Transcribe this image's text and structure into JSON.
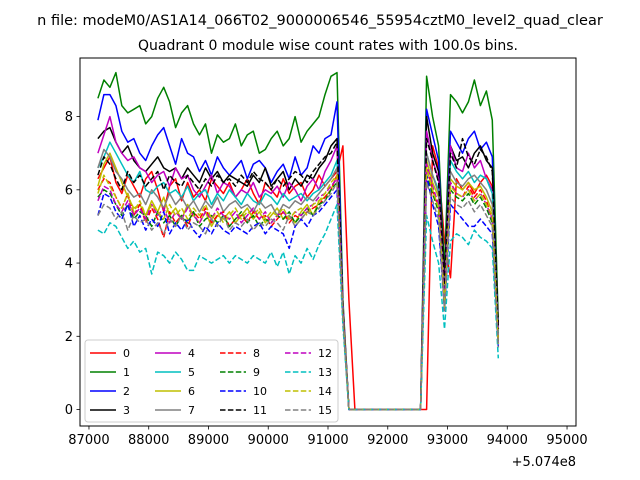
{
  "chart_data": {
    "type": "line",
    "suptitle": "n file: modeM0/AS1A14_066T02_9000006546_55954cztM0_level2_quad_clear",
    "title": "Quadrant 0 module wise count rates with 100.0s bins.",
    "xlabel": "",
    "ylabel": "",
    "x_offset_label": "+5.074e8",
    "xlim": [
      86850,
      95150
    ],
    "ylim": [
      -0.45,
      9.6
    ],
    "xticks": [
      87000,
      88000,
      89000,
      90000,
      91000,
      92000,
      93000,
      94000,
      95000
    ],
    "xtick_labels": [
      "87000",
      "88000",
      "89000",
      "90000",
      "91000",
      "92000",
      "93000",
      "94000",
      "95000"
    ],
    "yticks": [
      0,
      2,
      4,
      6,
      8
    ],
    "ytick_labels": [
      "0",
      "2",
      "4",
      "6",
      "8"
    ],
    "grid": false,
    "legend_placement": "lower-left",
    "legend_columns": 4,
    "x_start": 87150,
    "x_step": 100,
    "series": [
      {
        "name": "0",
        "color": "#ff0000",
        "dash": "solid",
        "values": [
          6.3,
          6.6,
          6.9,
          6.2,
          5.9,
          6.4,
          6.1,
          5.8,
          6.3,
          6.5,
          6.0,
          5.4,
          6.1,
          6.3,
          5.7,
          6.2,
          5.8,
          6.0,
          5.7,
          6.3,
          6.1,
          5.9,
          6.2,
          5.8,
          6.0,
          6.3,
          5.9,
          5.6,
          6.2,
          6.0,
          5.8,
          6.3,
          5.9,
          6.1,
          6.2,
          5.8,
          6.0,
          6.4,
          6.1,
          6.3,
          6.5,
          7.2,
          3.0,
          0.0,
          0.0,
          0.0,
          0.0,
          0.0,
          0.0,
          0.0,
          0.0,
          0.0,
          0.0,
          0.0,
          0.0,
          0.0,
          7.2,
          6.6,
          4.6,
          3.6,
          6.3,
          6.0,
          6.2,
          5.9,
          6.2,
          6.4,
          6.1,
          2.3
        ]
      },
      {
        "name": "1",
        "color": "#008000",
        "dash": "solid",
        "values": [
          8.5,
          9.0,
          8.8,
          9.2,
          8.3,
          8.1,
          8.2,
          8.3,
          7.8,
          8.0,
          8.5,
          8.8,
          8.4,
          7.7,
          8.1,
          8.3,
          7.8,
          7.5,
          7.8,
          7.0,
          7.5,
          7.3,
          7.4,
          7.8,
          7.2,
          7.5,
          7.6,
          7.0,
          7.1,
          7.4,
          7.6,
          7.2,
          7.4,
          8.0,
          7.3,
          7.6,
          7.8,
          8.0,
          8.6,
          9.1,
          9.2,
          3.0,
          0.0,
          0.0,
          0.0,
          0.0,
          0.0,
          0.0,
          0.0,
          0.0,
          0.0,
          0.0,
          0.0,
          0.0,
          0.0,
          9.1,
          8.0,
          7.2,
          3.8,
          8.6,
          8.4,
          8.1,
          8.4,
          9.0,
          8.3,
          8.7,
          7.9,
          2.4
        ]
      },
      {
        "name": "2",
        "color": "#0000ff",
        "dash": "solid",
        "values": [
          7.9,
          8.6,
          8.6,
          8.3,
          7.6,
          7.3,
          7.4,
          7.0,
          6.8,
          7.2,
          7.5,
          7.7,
          7.2,
          6.7,
          7.4,
          7.0,
          6.9,
          6.5,
          6.8,
          6.4,
          6.9,
          6.6,
          6.4,
          6.6,
          6.8,
          6.3,
          6.7,
          6.8,
          6.6,
          6.2,
          6.5,
          6.7,
          6.3,
          6.9,
          6.4,
          6.6,
          7.2,
          7.0,
          7.4,
          7.5,
          8.4,
          2.8,
          0.0,
          0.0,
          0.0,
          0.0,
          0.0,
          0.0,
          0.0,
          0.0,
          0.0,
          0.0,
          0.0,
          0.0,
          0.0,
          8.2,
          7.5,
          6.8,
          3.4,
          7.6,
          7.3,
          7.0,
          7.4,
          7.6,
          7.1,
          7.3,
          6.9,
          2.1
        ]
      },
      {
        "name": "3",
        "color": "#000000",
        "dash": "solid",
        "values": [
          7.4,
          7.6,
          7.7,
          7.3,
          7.0,
          7.2,
          6.8,
          6.6,
          6.5,
          6.7,
          6.9,
          6.6,
          6.5,
          6.6,
          6.3,
          6.6,
          6.4,
          6.2,
          6.6,
          6.3,
          6.5,
          6.2,
          6.4,
          6.3,
          6.2,
          6.1,
          6.4,
          6.2,
          6.6,
          6.1,
          6.3,
          6.5,
          6.0,
          6.3,
          6.1,
          6.4,
          6.3,
          6.6,
          6.8,
          7.2,
          7.4,
          2.8,
          0.0,
          0.0,
          0.0,
          0.0,
          0.0,
          0.0,
          0.0,
          0.0,
          0.0,
          0.0,
          0.0,
          0.0,
          0.0,
          8.0,
          7.0,
          6.5,
          3.6,
          7.2,
          6.8,
          6.9,
          6.6,
          7.0,
          7.2,
          6.8,
          6.6,
          2.2
        ]
      },
      {
        "name": "4",
        "color": "#bf00bf",
        "dash": "solid",
        "values": [
          7.0,
          7.5,
          8.0,
          7.3,
          7.0,
          6.8,
          6.9,
          6.6,
          6.5,
          6.2,
          6.4,
          6.5,
          6.1,
          6.6,
          6.3,
          6.4,
          6.0,
          5.8,
          6.1,
          6.4,
          5.9,
          6.2,
          6.1,
          5.8,
          6.0,
          5.9,
          6.2,
          5.8,
          6.0,
          5.9,
          6.1,
          5.8,
          6.2,
          6.0,
          5.7,
          6.1,
          6.3,
          6.0,
          6.5,
          6.8,
          7.2,
          2.9,
          0.0,
          0.0,
          0.0,
          0.0,
          0.0,
          0.0,
          0.0,
          0.0,
          0.0,
          0.0,
          0.0,
          0.0,
          0.0,
          7.6,
          6.8,
          6.3,
          3.2,
          7.2,
          6.6,
          6.5,
          7.0,
          6.6,
          6.8,
          6.3,
          6.0,
          2.2
        ]
      },
      {
        "name": "5",
        "color": "#00bfbf",
        "dash": "solid",
        "values": [
          6.6,
          6.9,
          7.3,
          7.0,
          6.7,
          6.4,
          6.2,
          6.5,
          6.0,
          5.9,
          6.1,
          6.2,
          5.9,
          6.0,
          5.8,
          6.1,
          5.7,
          5.9,
          6.0,
          5.6,
          5.9,
          5.7,
          6.0,
          5.8,
          5.6,
          5.9,
          5.7,
          5.6,
          5.9,
          5.8,
          5.6,
          5.9,
          5.7,
          5.8,
          5.9,
          5.7,
          5.9,
          6.0,
          6.2,
          6.4,
          6.8,
          2.8,
          0.0,
          0.0,
          0.0,
          0.0,
          0.0,
          0.0,
          0.0,
          0.0,
          0.0,
          0.0,
          0.0,
          0.0,
          0.0,
          7.0,
          6.4,
          6.0,
          3.0,
          6.8,
          6.5,
          6.3,
          6.5,
          6.2,
          6.4,
          6.3,
          5.9,
          2.0
        ]
      },
      {
        "name": "6",
        "color": "#bfbf00",
        "dash": "solid",
        "values": [
          6.1,
          6.7,
          7.0,
          6.6,
          6.2,
          5.8,
          5.5,
          5.6,
          5.3,
          5.7,
          5.4,
          5.8,
          5.3,
          5.5,
          5.2,
          5.6,
          5.3,
          5.1,
          5.4,
          5.0,
          5.3,
          5.2,
          5.4,
          5.1,
          5.3,
          5.5,
          5.2,
          5.4,
          5.1,
          5.3,
          5.5,
          5.2,
          5.3,
          5.1,
          5.4,
          5.6,
          5.3,
          5.7,
          5.8,
          6.0,
          6.4,
          2.7,
          0.0,
          0.0,
          0.0,
          0.0,
          0.0,
          0.0,
          0.0,
          0.0,
          0.0,
          0.0,
          0.0,
          0.0,
          0.0,
          6.8,
          6.2,
          5.8,
          2.9,
          6.3,
          6.1,
          6.0,
          6.2,
          6.0,
          6.1,
          5.8,
          5.4,
          1.9
        ]
      },
      {
        "name": "7",
        "color": "#808080",
        "dash": "solid",
        "values": [
          6.6,
          7.1,
          6.9,
          6.5,
          6.3,
          6.0,
          5.8,
          5.9,
          5.6,
          6.0,
          5.8,
          5.5,
          5.9,
          5.6,
          5.8,
          5.5,
          5.7,
          5.4,
          5.7,
          5.5,
          5.8,
          5.4,
          5.6,
          5.7,
          5.5,
          5.6,
          5.4,
          5.7,
          5.5,
          5.6,
          5.3,
          5.6,
          5.5,
          5.7,
          5.6,
          5.8,
          5.7,
          5.9,
          6.1,
          6.3,
          6.6,
          2.7,
          0.0,
          0.0,
          0.0,
          0.0,
          0.0,
          0.0,
          0.0,
          0.0,
          0.0,
          0.0,
          0.0,
          0.0,
          0.0,
          7.0,
          6.4,
          5.9,
          3.1,
          6.5,
          6.2,
          6.1,
          6.3,
          6.4,
          6.2,
          6.0,
          5.6,
          1.9
        ]
      },
      {
        "name": "8",
        "color": "#ff0000",
        "dash": "dashed",
        "values": [
          6.0,
          6.3,
          6.2,
          5.8,
          5.5,
          5.9,
          5.3,
          5.6,
          5.1,
          5.5,
          5.2,
          4.7,
          5.4,
          5.1,
          5.3,
          5.0,
          5.4,
          5.2,
          5.5,
          5.1,
          5.3,
          5.4,
          5.0,
          5.2,
          5.3,
          5.1,
          5.4,
          5.2,
          5.3,
          5.0,
          5.2,
          5.4,
          5.1,
          5.3,
          5.2,
          5.4,
          5.5,
          5.6,
          5.8,
          6.0,
          6.4,
          2.6,
          0.0,
          0.0,
          0.0,
          0.0,
          0.0,
          0.0,
          0.0,
          0.0,
          0.0,
          0.0,
          0.0,
          0.0,
          0.0,
          6.6,
          6.0,
          5.5,
          2.8,
          6.2,
          5.9,
          5.8,
          6.1,
          5.8,
          6.0,
          5.7,
          5.2,
          1.8
        ]
      },
      {
        "name": "9",
        "color": "#008000",
        "dash": "dashed",
        "values": [
          5.8,
          6.0,
          5.9,
          5.6,
          5.3,
          5.6,
          5.2,
          5.4,
          5.3,
          5.0,
          5.4,
          5.1,
          5.3,
          5.0,
          5.3,
          5.1,
          5.4,
          5.0,
          5.2,
          5.3,
          5.1,
          5.3,
          5.0,
          5.2,
          5.4,
          5.1,
          5.3,
          5.0,
          5.2,
          5.1,
          5.3,
          5.2,
          5.4,
          5.1,
          5.3,
          5.5,
          5.3,
          5.6,
          5.7,
          6.0,
          6.2,
          2.6,
          0.0,
          0.0,
          0.0,
          0.0,
          0.0,
          0.0,
          0.0,
          0.0,
          0.0,
          0.0,
          0.0,
          0.0,
          0.0,
          6.4,
          5.9,
          5.4,
          2.8,
          6.0,
          5.8,
          5.7,
          5.9,
          5.6,
          5.8,
          5.5,
          5.1,
          1.8
        ]
      },
      {
        "name": "10",
        "color": "#0000ff",
        "dash": "dashed",
        "values": [
          5.3,
          5.9,
          5.8,
          5.4,
          5.2,
          5.6,
          5.0,
          5.3,
          4.9,
          5.2,
          5.0,
          5.4,
          4.8,
          5.1,
          4.9,
          5.2,
          4.9,
          4.7,
          5.0,
          4.8,
          5.1,
          4.9,
          4.8,
          5.0,
          4.9,
          4.8,
          5.0,
          5.1,
          4.8,
          5.0,
          4.9,
          4.8,
          4.4,
          5.0,
          5.2,
          5.0,
          5.3,
          5.4,
          5.6,
          5.8,
          6.0,
          2.5,
          0.0,
          0.0,
          0.0,
          0.0,
          0.0,
          0.0,
          0.0,
          0.0,
          0.0,
          0.0,
          0.0,
          0.0,
          0.0,
          6.4,
          5.6,
          5.0,
          2.7,
          5.6,
          5.4,
          5.2,
          5.0,
          5.0,
          5.2,
          5.0,
          4.8,
          1.7
        ]
      },
      {
        "name": "11",
        "color": "#000000",
        "dash": "dashed",
        "values": [
          6.4,
          6.9,
          6.7,
          6.3,
          6.0,
          6.5,
          6.2,
          6.4,
          6.1,
          6.3,
          6.5,
          6.0,
          6.4,
          6.2,
          6.1,
          6.4,
          6.2,
          6.0,
          6.3,
          6.1,
          6.4,
          6.2,
          6.3,
          6.1,
          6.4,
          6.2,
          6.5,
          6.3,
          6.2,
          6.0,
          6.3,
          6.1,
          6.3,
          6.5,
          6.4,
          6.2,
          6.5,
          6.7,
          6.9,
          7.0,
          7.3,
          2.8,
          0.0,
          0.0,
          0.0,
          0.0,
          0.0,
          0.0,
          0.0,
          0.0,
          0.0,
          0.0,
          0.0,
          0.0,
          0.0,
          7.4,
          6.8,
          6.2,
          3.3,
          7.0,
          6.6,
          7.4,
          6.9,
          6.7,
          7.1,
          6.9,
          6.5,
          2.2
        ]
      },
      {
        "name": "12",
        "color": "#bf00bf",
        "dash": "dashed",
        "values": [
          5.7,
          6.1,
          6.0,
          5.6,
          5.4,
          5.7,
          5.3,
          5.5,
          5.2,
          5.6,
          5.3,
          5.5,
          5.1,
          5.4,
          5.2,
          5.5,
          5.3,
          5.1,
          5.4,
          5.2,
          5.5,
          5.3,
          5.2,
          5.4,
          5.1,
          5.3,
          5.5,
          5.2,
          5.4,
          5.1,
          5.3,
          5.4,
          5.2,
          5.4,
          5.3,
          5.5,
          5.6,
          5.8,
          5.9,
          6.1,
          6.3,
          2.6,
          0.0,
          0.0,
          0.0,
          0.0,
          0.0,
          0.0,
          0.0,
          0.0,
          0.0,
          0.0,
          0.0,
          0.0,
          0.0,
          6.7,
          6.1,
          5.6,
          2.9,
          6.2,
          5.9,
          5.8,
          6.0,
          5.7,
          5.9,
          5.6,
          5.2,
          1.8
        ]
      },
      {
        "name": "13",
        "color": "#00bfbf",
        "dash": "dashed",
        "values": [
          4.9,
          4.8,
          5.1,
          5.0,
          4.7,
          4.4,
          4.6,
          4.3,
          4.4,
          3.7,
          4.3,
          4.2,
          4.0,
          4.3,
          4.1,
          3.8,
          3.8,
          4.2,
          4.1,
          4.0,
          4.1,
          4.2,
          4.0,
          4.2,
          4.1,
          4.0,
          4.2,
          4.1,
          4.0,
          4.3,
          3.9,
          4.3,
          3.7,
          4.2,
          4.0,
          4.4,
          4.1,
          4.5,
          4.8,
          5.2,
          5.6,
          2.3,
          0.0,
          0.0,
          0.0,
          0.0,
          0.0,
          0.0,
          0.0,
          0.0,
          0.0,
          0.0,
          0.0,
          0.0,
          0.0,
          5.3,
          4.6,
          4.0,
          2.2,
          4.6,
          4.8,
          4.7,
          4.5,
          4.9,
          4.7,
          4.6,
          4.4,
          1.4
        ]
      },
      {
        "name": "14",
        "color": "#bfbf00",
        "dash": "dashed",
        "values": [
          5.9,
          6.4,
          6.1,
          5.8,
          5.5,
          5.9,
          5.4,
          5.7,
          5.3,
          5.6,
          5.4,
          5.2,
          5.6,
          5.3,
          5.5,
          5.2,
          5.5,
          5.3,
          5.6,
          5.2,
          5.4,
          5.1,
          5.3,
          5.5,
          5.2,
          5.4,
          5.3,
          5.5,
          5.2,
          5.4,
          5.3,
          5.5,
          5.2,
          5.4,
          5.5,
          5.3,
          5.6,
          5.7,
          5.9,
          6.2,
          6.4,
          2.6,
          0.0,
          0.0,
          0.0,
          0.0,
          0.0,
          0.0,
          0.0,
          0.0,
          0.0,
          0.0,
          0.0,
          0.0,
          0.0,
          6.6,
          6.0,
          5.5,
          2.8,
          6.1,
          5.9,
          5.8,
          6.0,
          5.7,
          5.9,
          5.6,
          5.3,
          1.8
        ]
      },
      {
        "name": "15",
        "color": "#808080",
        "dash": "dashed",
        "values": [
          5.3,
          5.6,
          5.5,
          5.2,
          5.4,
          4.9,
          5.3,
          5.1,
          5.2,
          4.9,
          5.1,
          4.8,
          5.2,
          5.0,
          5.3,
          4.9,
          5.1,
          5.0,
          4.8,
          5.2,
          5.0,
          5.3,
          4.9,
          5.1,
          5.0,
          5.2,
          4.9,
          5.1,
          5.0,
          5.2,
          5.1,
          4.9,
          5.3,
          5.0,
          5.2,
          5.4,
          5.3,
          5.5,
          5.7,
          5.9,
          6.2,
          2.5,
          0.0,
          0.0,
          0.0,
          0.0,
          0.0,
          0.0,
          0.0,
          0.0,
          0.0,
          0.0,
          0.0,
          0.0,
          0.0,
          6.2,
          5.7,
          5.2,
          2.7,
          5.8,
          5.6,
          5.5,
          5.7,
          5.4,
          5.6,
          5.3,
          5.0,
          1.7
        ]
      }
    ]
  }
}
